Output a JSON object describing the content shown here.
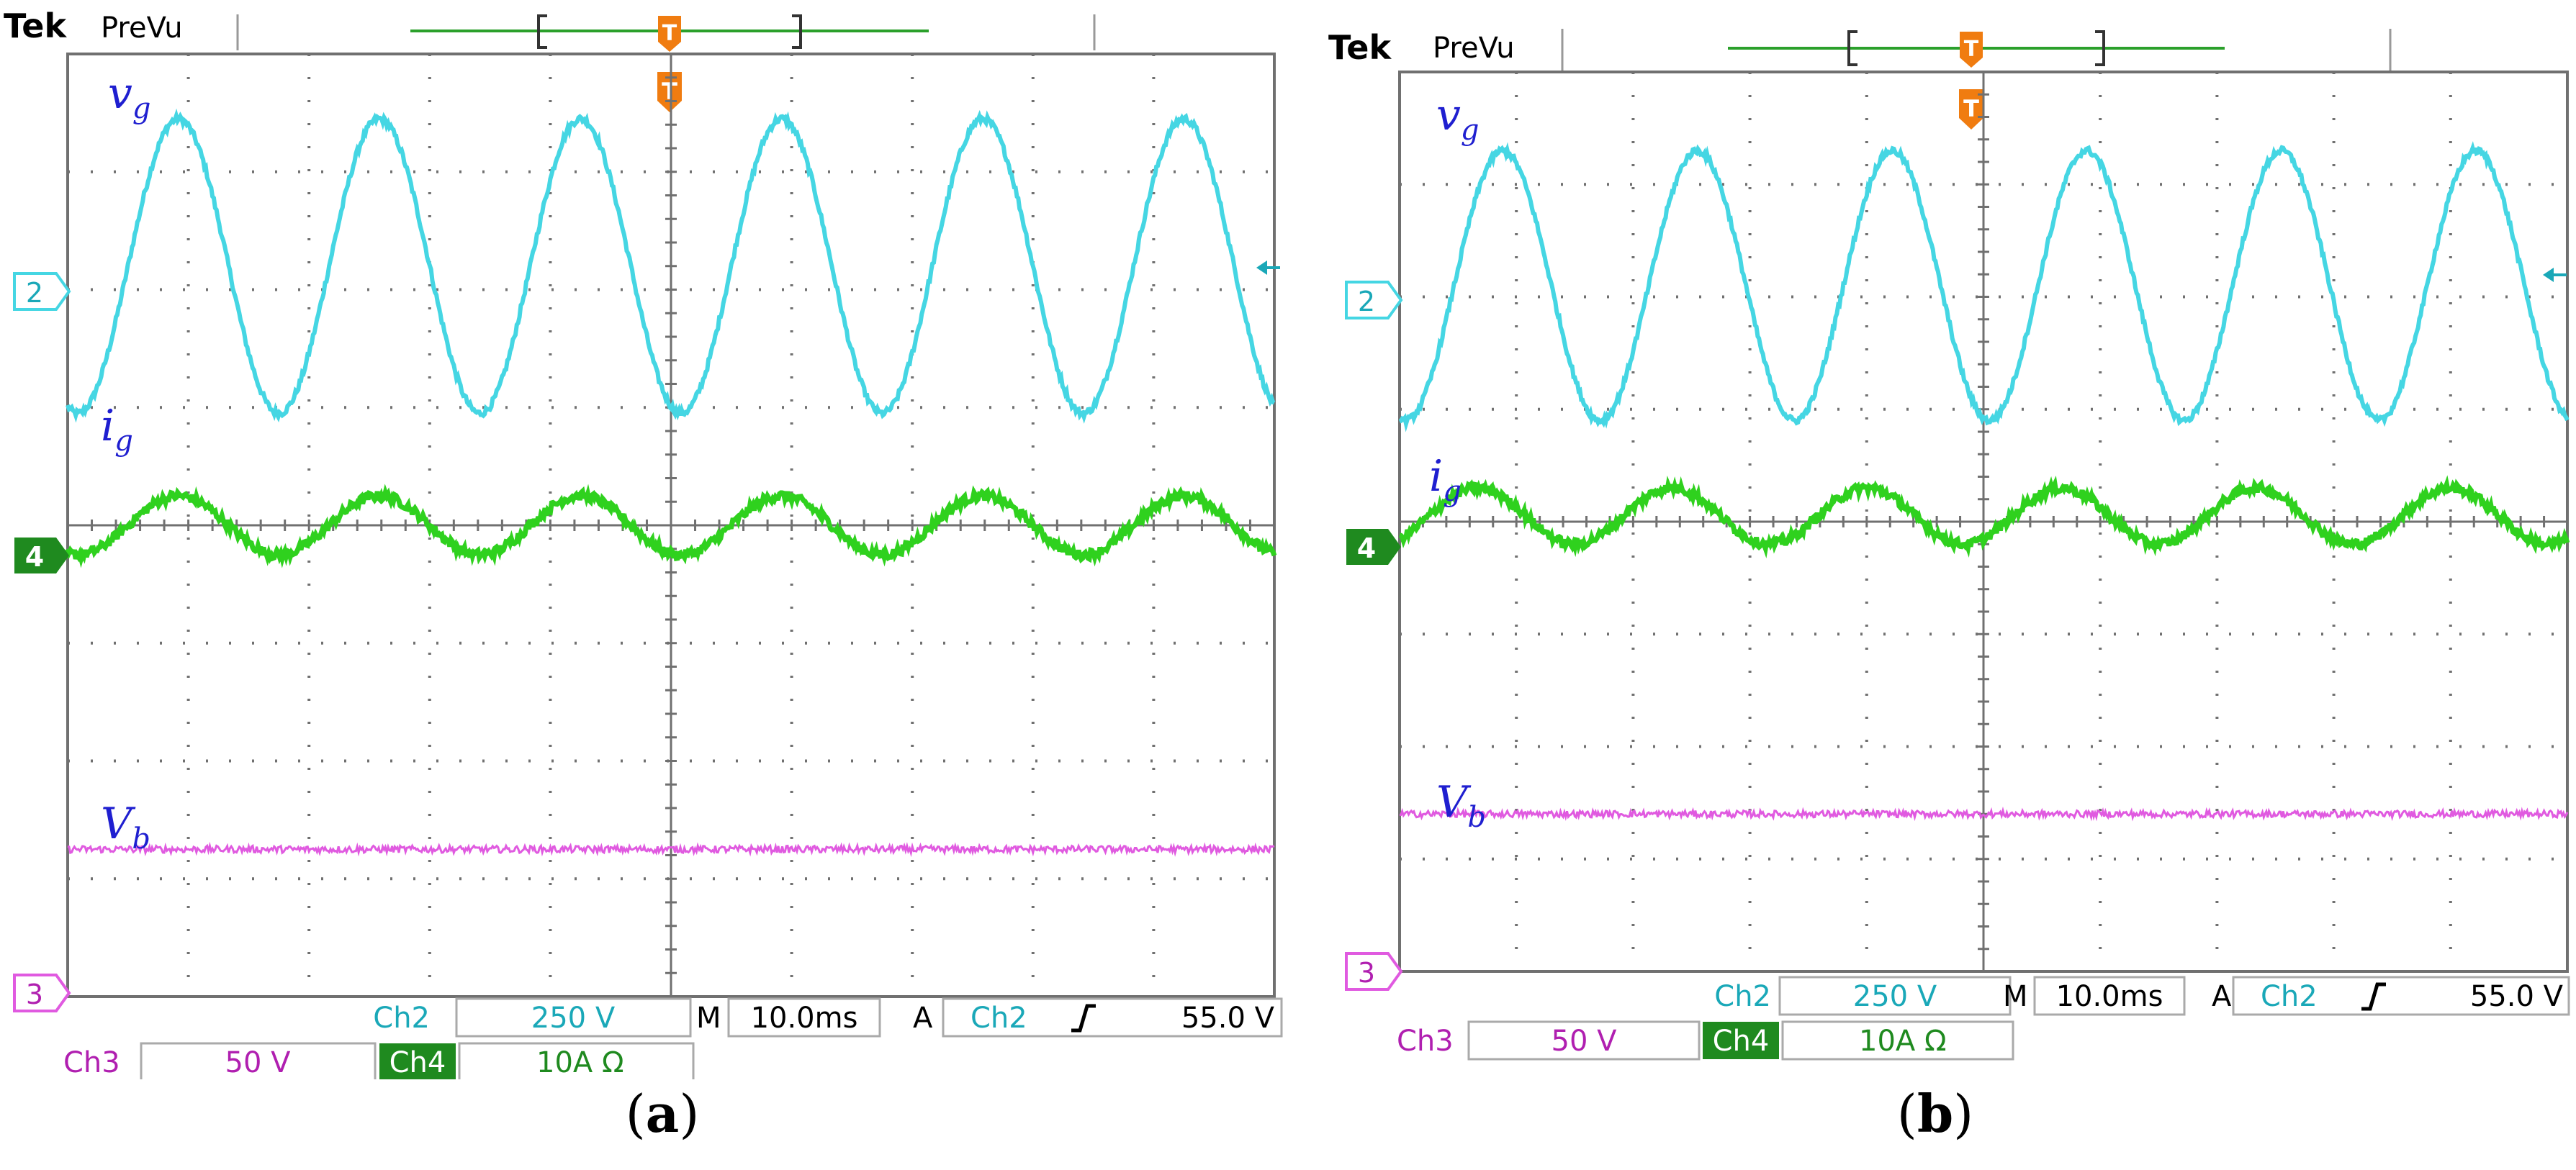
{
  "colors": {
    "ch2": "#45d6e3",
    "ch4": "#2fd11e",
    "ch3": "#e05ae0",
    "label_blue": "#1f1fd0",
    "ch2_text": "#1aa8b8",
    "ch3_text": "#b01fb0",
    "ch4_box": "#1f8a1f",
    "grid": "#707070",
    "trigger": "#f07c10",
    "timebar": "#2ba02b"
  },
  "panels": [
    {
      "id": "a",
      "header": {
        "brand": "Tek",
        "mode": "PreVu"
      },
      "trace_labels": {
        "vg": "v",
        "vg_sub": "g",
        "ig": "i",
        "ig_sub": "g",
        "vb": "V",
        "vb_sub": "b"
      },
      "channel_markers": {
        "ch2": "2",
        "ch4": "4",
        "ch3": "3"
      },
      "trigger_marker": "T",
      "readout": {
        "ch2_label": "Ch2",
        "ch2_scale": "250 V",
        "timebase_prefix": "M",
        "timebase": "10.0ms",
        "trigger_prefix": "A",
        "trigger_source": "Ch2",
        "trigger_level": "55.0 V",
        "ch3_label": "Ch3",
        "ch3_scale": "50 V",
        "ch4_label": "Ch4",
        "ch4_scale": "10A Ω"
      },
      "caption": {
        "open": "(",
        "letter": "a",
        "close": ")"
      }
    },
    {
      "id": "b",
      "header": {
        "brand": "Tek",
        "mode": "PreVu"
      },
      "trace_labels": {
        "vg": "v",
        "vg_sub": "g",
        "ig": "i",
        "ig_sub": "g",
        "vb": "V",
        "vb_sub": "b"
      },
      "channel_markers": {
        "ch2": "2",
        "ch4": "4",
        "ch3": "3"
      },
      "trigger_marker": "T",
      "readout": {
        "ch2_label": "Ch2",
        "ch2_scale": "250 V",
        "timebase_prefix": "M",
        "timebase": "10.0ms",
        "trigger_prefix": "A",
        "trigger_source": "Ch2",
        "trigger_level": "55.0 V",
        "ch3_label": "Ch3",
        "ch3_scale": "50 V",
        "ch4_label": "Ch4",
        "ch4_scale": "10A Ω"
      },
      "caption": {
        "open": "(",
        "letter": "b",
        "close": ")"
      }
    }
  ],
  "chart_data": [
    {
      "type": "line",
      "x_unit": "divisions",
      "y_unit": "divisions",
      "xlim": [
        0,
        10
      ],
      "ylim": [
        -4,
        4
      ],
      "grid": true,
      "series": [
        {
          "name": "vg",
          "kind": "sine",
          "cycles": 6,
          "amplitude_div": 1.25,
          "offset_div": 2.2,
          "phase": 0.3,
          "noise": 0.03
        },
        {
          "name": "ig",
          "kind": "sine",
          "cycles": 6,
          "amplitude_div": 0.25,
          "offset_div": 0.0,
          "phase": 0.3,
          "noise": 0.04
        },
        {
          "name": "Vb",
          "kind": "flat",
          "level_div": -2.75,
          "noise": 0.03
        }
      ]
    },
    {
      "type": "line",
      "x_unit": "divisions",
      "y_unit": "divisions",
      "xlim": [
        0,
        10
      ],
      "ylim": [
        -4,
        4
      ],
      "grid": true,
      "series": [
        {
          "name": "vg",
          "kind": "sine",
          "cycles": 6,
          "amplitude_div": 1.2,
          "offset_div": 2.1,
          "phase": 0.28,
          "noise": 0.03
        },
        {
          "name": "ig",
          "kind": "sine",
          "cycles": 6,
          "amplitude_div": 0.25,
          "offset_div": 0.05,
          "phase": 0.15,
          "noise": 0.04
        },
        {
          "name": "Vb",
          "kind": "flat",
          "level_div": -2.6,
          "noise": 0.03
        }
      ]
    }
  ]
}
